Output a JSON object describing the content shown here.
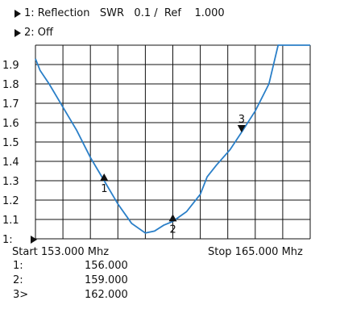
{
  "header": {
    "line1": {
      "label": "1: Reflection",
      "mode": "SWR",
      "scale": "0.1 /",
      "ref_label": "Ref",
      "ref_value": "1.000"
    },
    "line2": {
      "label": "2: Off"
    }
  },
  "axis": {
    "start_label": "Start 153.000 Mhz",
    "stop_label": "Stop 165.000 Mhz",
    "ytick_labels": [
      "1.9",
      "1.8",
      "1.7",
      "1.6",
      "1.5",
      "1.4",
      "1.3",
      "1.2",
      "1.1",
      "1:"
    ]
  },
  "markers": [
    {
      "id": "1",
      "label": "1:",
      "freq": "156.000"
    },
    {
      "id": "2",
      "label": "2:",
      "freq": "159.000"
    },
    {
      "id": "3",
      "label": "3>",
      "freq": "162.000"
    }
  ],
  "colors": {
    "trace": "#2a7fc8",
    "grid": "#111111"
  },
  "chart_data": {
    "type": "line",
    "xlim": [
      153.0,
      165.0
    ],
    "ylim": [
      1.0,
      2.0
    ],
    "grid": true,
    "series": [
      {
        "values_x": [
          153.0,
          153.2,
          153.6,
          154.2,
          154.8,
          155.4,
          156.0,
          156.6,
          157.2,
          157.8,
          158.2,
          158.6,
          159.0,
          159.6,
          160.2,
          160.5,
          160.9,
          161.5,
          162.0,
          162.6,
          163.2,
          163.6,
          164.0,
          164.5,
          165.0
        ],
        "values_y": [
          1.93,
          1.87,
          1.8,
          1.68,
          1.56,
          1.42,
          1.3,
          1.18,
          1.08,
          1.03,
          1.04,
          1.07,
          1.09,
          1.14,
          1.23,
          1.32,
          1.38,
          1.46,
          1.55,
          1.66,
          1.8,
          2.0,
          2.0,
          2.0,
          2.0
        ]
      }
    ],
    "marker_points": [
      {
        "id": "1",
        "x": 156.0,
        "y": 1.3,
        "direction": "up"
      },
      {
        "id": "2",
        "x": 159.0,
        "y": 1.09,
        "direction": "up"
      },
      {
        "id": "3",
        "x": 162.0,
        "y": 1.55,
        "direction": "down"
      }
    ]
  }
}
